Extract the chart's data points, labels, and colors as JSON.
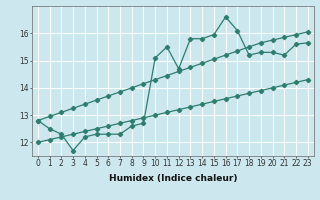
{
  "xlabel": "Humidex (Indice chaleur)",
  "bg_color": "#cce8ee",
  "grid_color": "#ffffff",
  "line_color": "#2e7d6e",
  "x": [
    0,
    1,
    2,
    3,
    4,
    5,
    6,
    7,
    8,
    9,
    10,
    11,
    12,
    13,
    14,
    15,
    16,
    17,
    18,
    19,
    20,
    21,
    22,
    23
  ],
  "y_main": [
    12.8,
    12.5,
    12.3,
    11.7,
    12.2,
    12.3,
    12.3,
    12.3,
    12.6,
    12.7,
    15.1,
    15.5,
    14.7,
    15.8,
    15.8,
    15.95,
    16.6,
    16.1,
    15.2,
    15.3,
    15.3,
    15.2,
    15.6,
    15.65
  ],
  "y_upper": [
    12.8,
    12.95,
    13.1,
    13.25,
    13.4,
    13.55,
    13.7,
    13.85,
    14.0,
    14.15,
    14.3,
    14.45,
    14.6,
    14.75,
    14.9,
    15.05,
    15.2,
    15.35,
    15.5,
    15.65,
    15.75,
    15.85,
    15.95,
    16.05
  ],
  "y_lower": [
    12.0,
    12.1,
    12.2,
    12.3,
    12.4,
    12.5,
    12.6,
    12.7,
    12.8,
    12.9,
    13.0,
    13.1,
    13.2,
    13.3,
    13.4,
    13.5,
    13.6,
    13.7,
    13.8,
    13.9,
    14.0,
    14.1,
    14.2,
    14.3
  ],
  "ylim": [
    11.5,
    17.0
  ],
  "xlim": [
    -0.5,
    23.5
  ],
  "yticks": [
    12,
    13,
    14,
    15,
    16
  ],
  "xticks": [
    0,
    1,
    2,
    3,
    4,
    5,
    6,
    7,
    8,
    9,
    10,
    11,
    12,
    13,
    14,
    15,
    16,
    17,
    18,
    19,
    20,
    21,
    22,
    23
  ],
  "marker": "D",
  "markersize": 2.2,
  "linewidth": 0.9,
  "tick_fontsize": 5.5,
  "xlabel_fontsize": 6.5
}
